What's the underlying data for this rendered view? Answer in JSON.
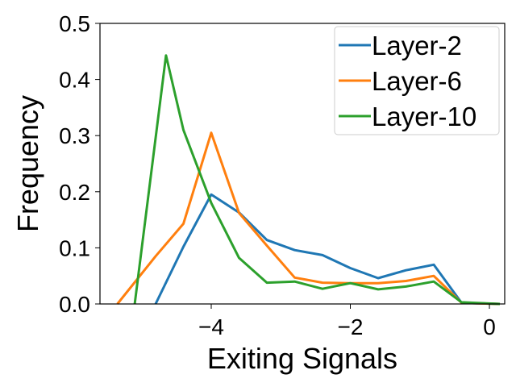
{
  "chart_data": {
    "type": "line",
    "title": "",
    "xlabel": "Exiting Signals",
    "ylabel": "Frequency",
    "xlim": [
      -5.6,
      0.22
    ],
    "ylim": [
      0,
      0.5
    ],
    "xticks": [
      -4,
      -2,
      0
    ],
    "xtick_labels": [
      "−4",
      "−2",
      "0"
    ],
    "yticks": [
      0.0,
      0.1,
      0.2,
      0.3,
      0.4,
      0.5
    ],
    "ytick_labels": [
      "0.0",
      "0.1",
      "0.2",
      "0.3",
      "0.4",
      "0.5"
    ],
    "grid": false,
    "legend_position": "top-right",
    "series": [
      {
        "name": "Layer-2",
        "color": "#1f77b4",
        "x": [
          -4.8,
          -4.4,
          -4.0,
          -3.6,
          -3.2,
          -2.8,
          -2.4,
          -2.0,
          -1.6,
          -1.2,
          -0.8,
          -0.4,
          0.15
        ],
        "y": [
          0.0,
          0.102,
          0.195,
          0.163,
          0.114,
          0.096,
          0.087,
          0.064,
          0.046,
          0.06,
          0.07,
          0.002,
          0.0
        ]
      },
      {
        "name": "Layer-6",
        "color": "#ff7f0e",
        "x": [
          -5.35,
          -4.8,
          -4.4,
          -4.0,
          -3.6,
          -3.2,
          -2.8,
          -2.4,
          -2.0,
          -1.6,
          -1.2,
          -0.8,
          -0.4,
          0.15
        ],
        "y": [
          0.0,
          0.085,
          0.143,
          0.305,
          0.162,
          0.104,
          0.047,
          0.038,
          0.037,
          0.037,
          0.041,
          0.05,
          0.002,
          0.0
        ]
      },
      {
        "name": "Layer-10",
        "color": "#2ca02c",
        "x": [
          -5.1,
          -4.65,
          -4.4,
          -4.0,
          -3.6,
          -3.2,
          -2.8,
          -2.4,
          -2.0,
          -1.6,
          -1.2,
          -0.8,
          -0.4,
          0.15
        ],
        "y": [
          0.0,
          0.443,
          0.31,
          0.18,
          0.082,
          0.038,
          0.04,
          0.027,
          0.037,
          0.026,
          0.031,
          0.04,
          0.003,
          0.0
        ]
      }
    ]
  }
}
